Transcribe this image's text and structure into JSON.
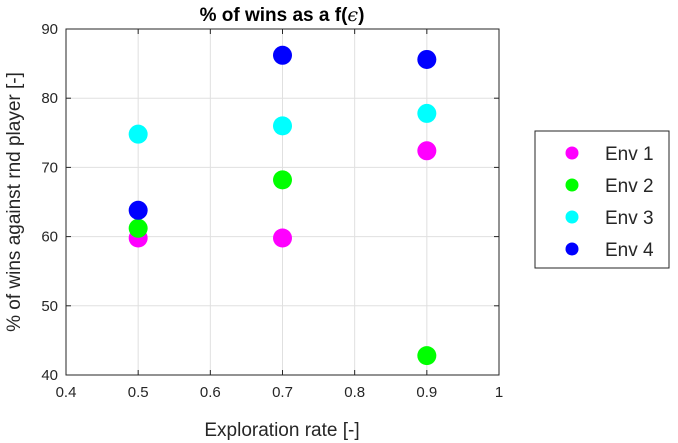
{
  "chart_data": {
    "type": "scatter",
    "title": "% of wins as a f(",
    "title_symbol": "ϵ",
    "title_close": ")",
    "xlabel": "Exploration rate [-]",
    "ylabel": "% of wins against rnd player [-]",
    "xlim": [
      0.4,
      1.0
    ],
    "ylim": [
      40,
      90
    ],
    "xticks": [
      0.4,
      0.5,
      0.6,
      0.7,
      0.8,
      0.9,
      1.0
    ],
    "xtick_labels": [
      "0.4",
      "0.5",
      "0.6",
      "0.7",
      "0.8",
      "0.9",
      "1"
    ],
    "yticks": [
      40,
      50,
      60,
      70,
      80,
      90
    ],
    "ytick_labels": [
      "40",
      "50",
      "60",
      "70",
      "80",
      "90"
    ],
    "grid": true,
    "legend_placement": "outside-right",
    "series": [
      {
        "name": "Env 1",
        "color": "#ff00ff",
        "x": [
          0.5,
          0.7,
          0.9
        ],
        "y": [
          59.8,
          59.8,
          72.4
        ]
      },
      {
        "name": "Env 2",
        "color": "#00ff00",
        "x": [
          0.5,
          0.7,
          0.9
        ],
        "y": [
          61.2,
          68.2,
          42.8
        ]
      },
      {
        "name": "Env 3",
        "color": "#00ffff",
        "x": [
          0.5,
          0.7,
          0.9
        ],
        "y": [
          74.8,
          76.0,
          77.8
        ]
      },
      {
        "name": "Env 4",
        "color": "#0000ff",
        "x": [
          0.5,
          0.7,
          0.9
        ],
        "y": [
          63.8,
          86.2,
          85.6
        ]
      }
    ]
  }
}
